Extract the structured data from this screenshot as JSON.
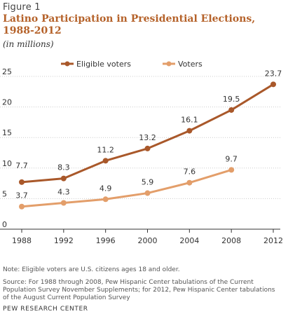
{
  "figure_label": "Figure 1",
  "title": "Latino Participation in Presidential Elections, 1988-2012",
  "subtitle": "(in millions)",
  "note": "Note: Eligible voters are U.S. citizens ages 18 and older.",
  "source": "Source: For 1988 through 2008, Pew Hispanic Center tabulations of the Current Population Survey November Supplements; for 2012, Pew Hispanic Center tabulations of the August Current Population Survey",
  "org": "PEW RESEARCH CENTER",
  "colors": {
    "eligible": "#a9582a",
    "voters": "#e39e6a",
    "grid": "#cccccc",
    "axis": "#333333"
  },
  "chart_data": {
    "type": "line",
    "x": [
      "1988",
      "1992",
      "1996",
      "2000",
      "2004",
      "2008",
      "2012"
    ],
    "ylim": [
      0,
      25
    ],
    "yticks": [
      "0",
      "5",
      "10",
      "15",
      "20",
      "25"
    ],
    "legend_placement": "top-center",
    "series": [
      {
        "name": "Eligible voters",
        "values": [
          7.7,
          8.3,
          11.2,
          13.2,
          16.1,
          19.5,
          23.7
        ],
        "labels": [
          "7.7",
          "8.3",
          "11.2",
          "13.2",
          "16.1",
          "19.5",
          "23.7"
        ]
      },
      {
        "name": "Voters",
        "values": [
          3.7,
          4.3,
          4.9,
          5.9,
          7.6,
          9.7,
          null
        ],
        "labels": [
          "3.7",
          "4.3",
          "4.9",
          "5.9",
          "7.6",
          "9.7",
          null
        ]
      }
    ]
  }
}
